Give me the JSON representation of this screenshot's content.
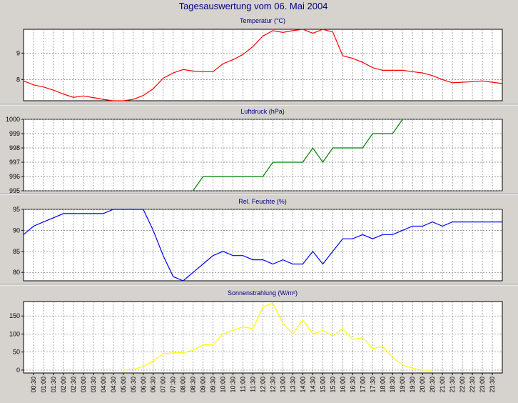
{
  "title": "Tagesauswertung vom 06. Mai 2004",
  "colors": {
    "background": "#d6d3ce",
    "title": "#000080",
    "grid": "#7f7f7f"
  },
  "x_labels": [
    "00:30",
    "01:00",
    "01:30",
    "02:00",
    "02:30",
    "03:00",
    "03:30",
    "04:00",
    "04:30",
    "05:00",
    "05:30",
    "06:00",
    "06:30",
    "07:00",
    "07:30",
    "08:00",
    "08:30",
    "09:00",
    "09:30",
    "10:00",
    "10:30",
    "11:00",
    "11:30",
    "12:00",
    "12:30",
    "13:00",
    "13:30",
    "14:00",
    "14:30",
    "15:00",
    "15:30",
    "16:00",
    "16:30",
    "17:00",
    "17:30",
    "18:00",
    "18:30",
    "19:00",
    "19:30",
    "20:00",
    "20:30",
    "21:00",
    "21:30",
    "22:00",
    "22:30",
    "23:00",
    "23:30"
  ],
  "chart_data": [
    {
      "type": "line",
      "title": "Temperatur (°C)",
      "color": "#ff0000",
      "ylim": [
        7.2,
        9.9
      ],
      "yticks": [
        8,
        9
      ],
      "grid": true,
      "x": [
        "00:00",
        "00:30",
        "01:00",
        "01:30",
        "02:00",
        "02:30",
        "03:00",
        "03:30",
        "04:00",
        "04:30",
        "05:00",
        "05:30",
        "06:00",
        "06:30",
        "07:00",
        "07:30",
        "08:00",
        "08:30",
        "09:00",
        "09:30",
        "10:00",
        "10:30",
        "11:00",
        "11:30",
        "12:00",
        "12:30",
        "13:00",
        "13:30",
        "14:00",
        "14:30",
        "15:00",
        "15:30",
        "16:00",
        "16:30",
        "17:00",
        "17:30",
        "18:00",
        "18:30",
        "19:00",
        "19:30",
        "20:00",
        "20:30",
        "21:00",
        "21:30",
        "22:00",
        "22:30",
        "23:00",
        "23:30",
        "24:00"
      ],
      "values": [
        7.95,
        7.8,
        7.72,
        7.6,
        7.45,
        7.33,
        7.38,
        7.32,
        7.25,
        7.2,
        7.2,
        7.25,
        7.4,
        7.65,
        8.05,
        8.25,
        8.38,
        8.32,
        8.3,
        8.3,
        8.6,
        8.75,
        8.95,
        9.25,
        9.65,
        9.85,
        9.78,
        9.85,
        9.9,
        9.75,
        9.9,
        9.8,
        8.9,
        8.8,
        8.65,
        8.45,
        8.35,
        8.35,
        8.35,
        8.3,
        8.25,
        8.15,
        8.0,
        7.88,
        7.9,
        7.92,
        7.95,
        7.9,
        7.85
      ]
    },
    {
      "type": "line",
      "title": "Luftdruck (hPa)",
      "color": "#008000",
      "ylim": [
        995,
        1000
      ],
      "yticks": [
        995,
        996,
        997,
        998,
        999,
        1000
      ],
      "grid": true,
      "x": [
        "08:30",
        "09:00",
        "10:30",
        "12:00",
        "12:30",
        "13:00",
        "13:30",
        "14:00",
        "14:30",
        "15:00",
        "15:30",
        "16:00",
        "16:30",
        "17:00",
        "17:30",
        "18:00",
        "18:30",
        "19:00"
      ],
      "values": [
        995,
        996,
        996,
        996,
        997,
        997,
        997,
        997,
        998,
        997,
        998,
        998,
        998,
        998,
        999,
        999,
        999,
        1000
      ]
    },
    {
      "type": "line",
      "title": "Rel. Feuchte (%)",
      "color": "#0000ff",
      "ylim": [
        78,
        95
      ],
      "yticks": [
        80,
        85,
        90,
        95
      ],
      "grid": true,
      "x": [
        "00:00",
        "00:30",
        "01:00",
        "01:30",
        "02:00",
        "02:30",
        "03:00",
        "03:30",
        "04:00",
        "04:30",
        "05:00",
        "05:30",
        "06:00",
        "06:30",
        "07:00",
        "07:30",
        "08:00",
        "08:30",
        "09:00",
        "09:30",
        "10:00",
        "10:30",
        "11:00",
        "11:30",
        "12:00",
        "12:30",
        "13:00",
        "13:30",
        "14:00",
        "14:30",
        "15:00",
        "15:30",
        "16:00",
        "16:30",
        "17:00",
        "17:30",
        "18:00",
        "18:30",
        "19:00",
        "19:30",
        "20:00",
        "20:30",
        "21:00",
        "21:30",
        "22:00",
        "22:30",
        "23:00",
        "23:30",
        "24:00"
      ],
      "values": [
        89,
        91,
        92,
        93,
        94,
        94,
        94,
        94,
        94,
        95,
        95,
        95,
        95,
        90,
        84,
        79,
        78,
        80,
        82,
        84,
        85,
        84,
        84,
        83,
        83,
        82,
        83,
        82,
        82,
        85,
        82,
        85,
        88,
        88,
        89,
        88,
        89,
        89,
        90,
        91,
        91,
        92,
        91,
        92,
        92,
        92,
        92,
        92,
        92
      ]
    },
    {
      "type": "line",
      "title": "Sonnenstrahlung (W/m²)",
      "color": "#ffff00",
      "ylim": [
        -8,
        190
      ],
      "yticks": [
        0,
        50,
        100,
        150
      ],
      "grid": true,
      "x": [
        "05:00",
        "05:30",
        "06:00",
        "06:30",
        "07:00",
        "07:30",
        "08:00",
        "08:30",
        "09:00",
        "09:30",
        "10:00",
        "10:30",
        "11:00",
        "11:30",
        "12:00",
        "12:30",
        "13:00",
        "13:30",
        "14:00",
        "14:30",
        "15:00",
        "15:30",
        "16:00",
        "16:30",
        "17:00",
        "17:30",
        "18:00",
        "18:30",
        "19:00",
        "19:30",
        "20:00",
        "20:30"
      ],
      "values": [
        0,
        2,
        10,
        25,
        45,
        48,
        48,
        55,
        70,
        70,
        100,
        110,
        120,
        115,
        175,
        185,
        130,
        100,
        140,
        100,
        110,
        95,
        115,
        85,
        90,
        60,
        65,
        35,
        15,
        5,
        0,
        0
      ]
    }
  ]
}
